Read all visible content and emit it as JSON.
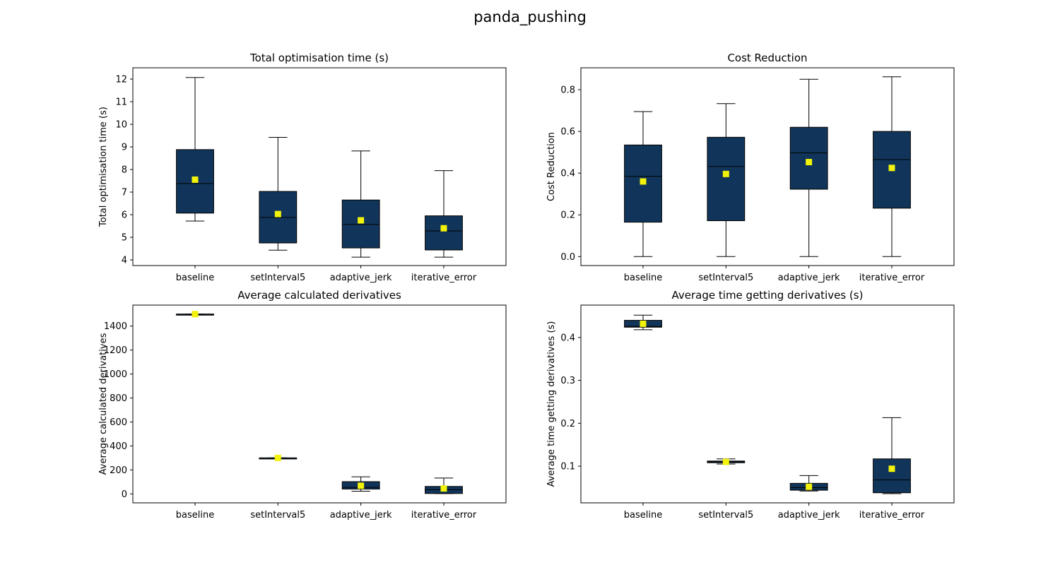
{
  "figure": {
    "title": "panda_pushing"
  },
  "colors": {
    "box_fill": "#11355a",
    "mean_marker": "#f2f20a",
    "whisker": "#000000",
    "median": "#000000"
  },
  "chart_data": [
    {
      "type": "box",
      "title": "Total optimisation time (s)",
      "xlabel": "",
      "ylabel": "Total optimisation time (s)",
      "categories": [
        "baseline",
        "setInterval5",
        "adaptive_jerk",
        "iterative_error"
      ],
      "ylim": [
        3.75,
        12.5
      ],
      "yticks": [
        4,
        5,
        6,
        7,
        8,
        9,
        10,
        11,
        12
      ],
      "boxes": [
        {
          "whislo": 5.72,
          "q1": 6.07,
          "median": 7.38,
          "q3": 8.88,
          "whishi": 12.07,
          "mean": 7.55
        },
        {
          "whislo": 4.43,
          "q1": 4.75,
          "median": 5.88,
          "q3": 7.03,
          "whishi": 9.42,
          "mean": 6.03
        },
        {
          "whislo": 4.12,
          "q1": 4.53,
          "median": 5.57,
          "q3": 6.65,
          "whishi": 8.82,
          "mean": 5.75
        },
        {
          "whislo": 4.12,
          "q1": 4.44,
          "median": 5.28,
          "q3": 5.95,
          "whishi": 7.95,
          "mean": 5.4
        }
      ]
    },
    {
      "type": "box",
      "title": "Cost Reduction",
      "xlabel": "",
      "ylabel": "Cost Reduction",
      "categories": [
        "baseline",
        "setInterval5",
        "adaptive_jerk",
        "iterative_error"
      ],
      "ylim": [
        -0.043,
        0.905
      ],
      "yticks": [
        0.0,
        0.2,
        0.4,
        0.6,
        0.8
      ],
      "ytick_labels": [
        "0.0",
        "0.2",
        "0.4",
        "0.6",
        "0.8"
      ],
      "boxes": [
        {
          "whislo": 0.0,
          "q1": 0.165,
          "median": 0.385,
          "q3": 0.535,
          "whishi": 0.695,
          "mean": 0.36
        },
        {
          "whislo": 0.0,
          "q1": 0.172,
          "median": 0.432,
          "q3": 0.572,
          "whishi": 0.733,
          "mean": 0.396
        },
        {
          "whislo": 0.0,
          "q1": 0.323,
          "median": 0.497,
          "q3": 0.62,
          "whishi": 0.85,
          "mean": 0.453
        },
        {
          "whislo": 0.0,
          "q1": 0.232,
          "median": 0.465,
          "q3": 0.6,
          "whishi": 0.862,
          "mean": 0.425
        }
      ]
    },
    {
      "type": "box",
      "title": "Average calculated derivatives",
      "xlabel": "",
      "ylabel": "Average calculated derivatives",
      "categories": [
        "baseline",
        "setInterval5",
        "adaptive_jerk",
        "iterative_error"
      ],
      "ylim": [
        -75,
        1575
      ],
      "yticks": [
        0,
        200,
        400,
        600,
        800,
        1000,
        1200,
        1400
      ],
      "boxes": [
        {
          "whislo": 1500,
          "q1": 1500,
          "median": 1500,
          "q3": 1500,
          "whishi": 1500,
          "mean": 1500
        },
        {
          "whislo": 300,
          "q1": 300,
          "median": 300,
          "q3": 300,
          "whishi": 300,
          "mean": 300
        },
        {
          "whislo": 22,
          "q1": 40,
          "median": 55,
          "q3": 102,
          "whishi": 142,
          "mean": 68
        },
        {
          "whislo": 2,
          "q1": 3,
          "median": 35,
          "q3": 62,
          "whishi": 132,
          "mean": 45
        }
      ]
    },
    {
      "type": "box",
      "title": "Average time getting derivatives (s)",
      "xlabel": "",
      "ylabel": "Average time getting derivatives (s)",
      "categories": [
        "baseline",
        "setInterval5",
        "adaptive_jerk",
        "iterative_error"
      ],
      "ylim": [
        0.0145,
        0.4755
      ],
      "yticks": [
        0.1,
        0.2,
        0.3,
        0.4
      ],
      "ytick_labels": [
        "0.1",
        "0.2",
        "0.3",
        "0.4"
      ],
      "boxes": [
        {
          "whislo": 0.418,
          "q1": 0.424,
          "median": 0.426,
          "q3": 0.44,
          "whishi": 0.452,
          "mean": 0.432
        },
        {
          "whislo": 0.105,
          "q1": 0.108,
          "median": 0.11,
          "q3": 0.112,
          "whishi": 0.117,
          "mean": 0.11
        },
        {
          "whislo": 0.042,
          "q1": 0.044,
          "median": 0.05,
          "q3": 0.06,
          "whishi": 0.078,
          "mean": 0.052
        },
        {
          "whislo": 0.036,
          "q1": 0.038,
          "median": 0.068,
          "q3": 0.117,
          "whishi": 0.213,
          "mean": 0.094
        }
      ]
    }
  ]
}
